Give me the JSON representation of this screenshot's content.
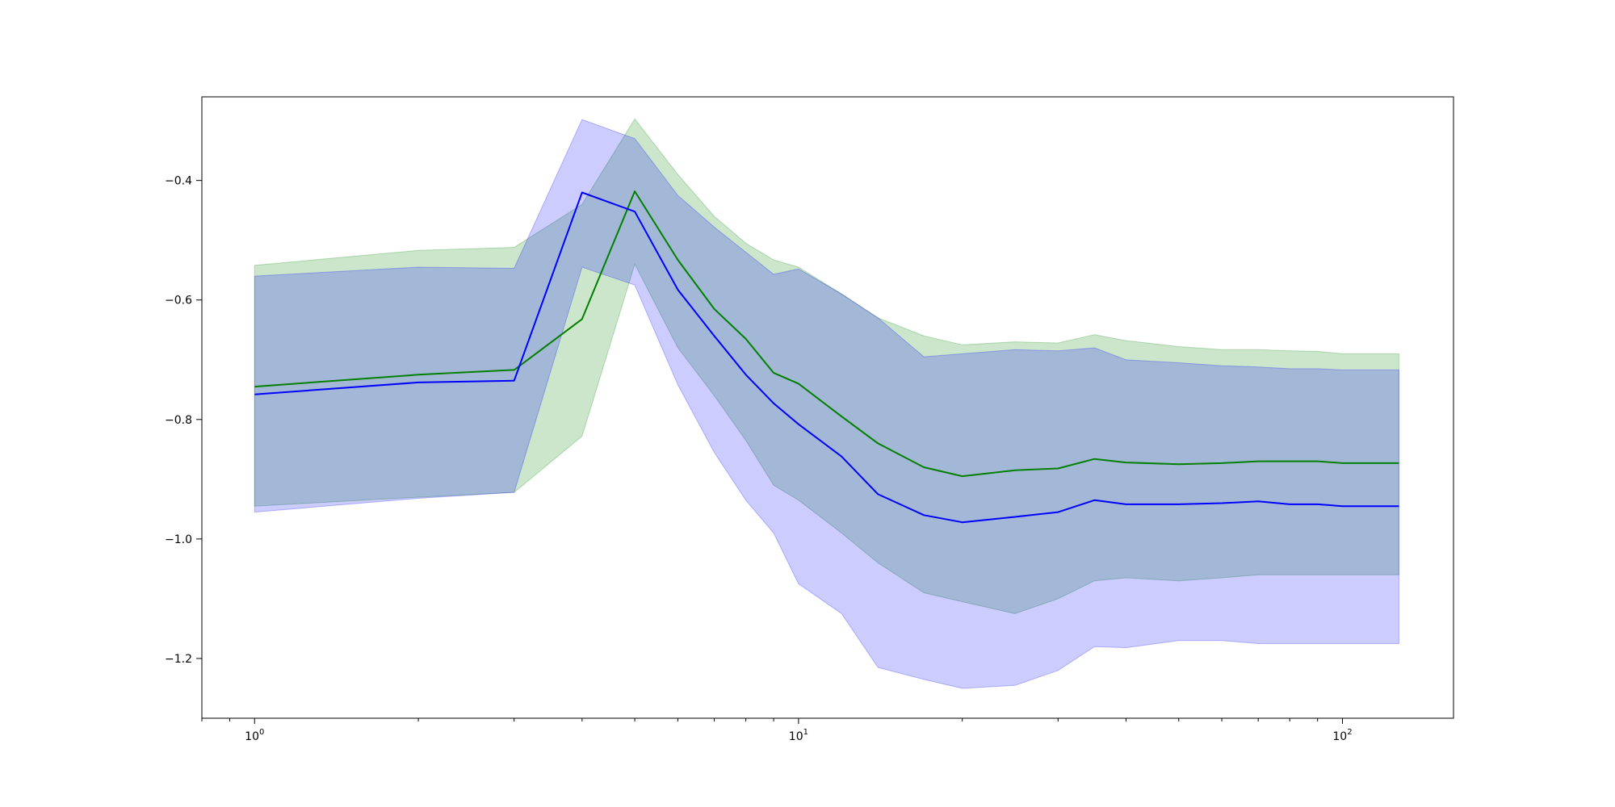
{
  "chart_data": {
    "type": "line",
    "title": "",
    "xlabel": "",
    "ylabel": "",
    "xscale": "log",
    "xlim": [
      0.8,
      160
    ],
    "ylim": [
      -1.3,
      -0.26
    ],
    "grid": false,
    "legend": "none",
    "x_ticks": [
      {
        "value": 1,
        "base": "10",
        "exp": "0"
      },
      {
        "value": 10,
        "base": "10",
        "exp": "1"
      },
      {
        "value": 100,
        "base": "10",
        "exp": "2"
      }
    ],
    "y_ticks": [
      {
        "value": -0.4,
        "label": "−0.4"
      },
      {
        "value": -0.6,
        "label": "−0.6"
      },
      {
        "value": -0.8,
        "label": "−0.8"
      },
      {
        "value": -1.0,
        "label": "−1.0"
      },
      {
        "value": -1.2,
        "label": "−1.2"
      }
    ],
    "series": [
      {
        "color": "#008000",
        "band_color": "#008000",
        "x": [
          1,
          2,
          3,
          4,
          5,
          6,
          7,
          8,
          9,
          10,
          12,
          14,
          17,
          20,
          25,
          30,
          35,
          40,
          50,
          60,
          70,
          80,
          90,
          100,
          127
        ],
        "mean": [
          -0.745,
          -0.725,
          -0.717,
          -0.632,
          -0.418,
          -0.533,
          -0.615,
          -0.665,
          -0.722,
          -0.74,
          -0.795,
          -0.84,
          -0.88,
          -0.895,
          -0.885,
          -0.882,
          -0.866,
          -0.872,
          -0.875,
          -0.873,
          -0.87,
          -0.87,
          -0.87,
          -0.873,
          -0.873
        ],
        "upper": [
          -0.542,
          -0.517,
          -0.512,
          -0.44,
          -0.297,
          -0.39,
          -0.46,
          -0.505,
          -0.533,
          -0.545,
          -0.59,
          -0.63,
          -0.66,
          -0.675,
          -0.67,
          -0.672,
          -0.658,
          -0.668,
          -0.678,
          -0.683,
          -0.683,
          -0.685,
          -0.686,
          -0.69,
          -0.69
        ],
        "lower": [
          -0.945,
          -0.93,
          -0.922,
          -0.828,
          -0.54,
          -0.68,
          -0.76,
          -0.835,
          -0.91,
          -0.935,
          -0.99,
          -1.04,
          -1.09,
          -1.105,
          -1.125,
          -1.1,
          -1.07,
          -1.065,
          -1.07,
          -1.065,
          -1.06,
          -1.06,
          -1.06,
          -1.06,
          -1.06
        ]
      },
      {
        "color": "#0000ff",
        "band_color": "#0000ff",
        "x": [
          1,
          2,
          3,
          4,
          5,
          6,
          7,
          8,
          9,
          10,
          12,
          14,
          17,
          20,
          25,
          30,
          35,
          40,
          50,
          60,
          70,
          80,
          90,
          100,
          127
        ],
        "mean": [
          -0.758,
          -0.738,
          -0.735,
          -0.42,
          -0.452,
          -0.583,
          -0.66,
          -0.725,
          -0.773,
          -0.808,
          -0.862,
          -0.925,
          -0.96,
          -0.972,
          -0.963,
          -0.955,
          -0.935,
          -0.942,
          -0.942,
          -0.94,
          -0.937,
          -0.942,
          -0.942,
          -0.945,
          -0.945
        ],
        "upper": [
          -0.56,
          -0.545,
          -0.547,
          -0.298,
          -0.33,
          -0.425,
          -0.478,
          -0.52,
          -0.557,
          -0.548,
          -0.59,
          -0.63,
          -0.695,
          -0.69,
          -0.683,
          -0.685,
          -0.68,
          -0.7,
          -0.705,
          -0.71,
          -0.712,
          -0.715,
          -0.715,
          -0.717,
          -0.717
        ],
        "lower": [
          -0.955,
          -0.932,
          -0.922,
          -0.545,
          -0.575,
          -0.742,
          -0.855,
          -0.935,
          -0.99,
          -1.075,
          -1.125,
          -1.215,
          -1.235,
          -1.25,
          -1.245,
          -1.22,
          -1.18,
          -1.182,
          -1.17,
          -1.17,
          -1.175,
          -1.175,
          -1.175,
          -1.175,
          -1.175
        ]
      }
    ]
  }
}
